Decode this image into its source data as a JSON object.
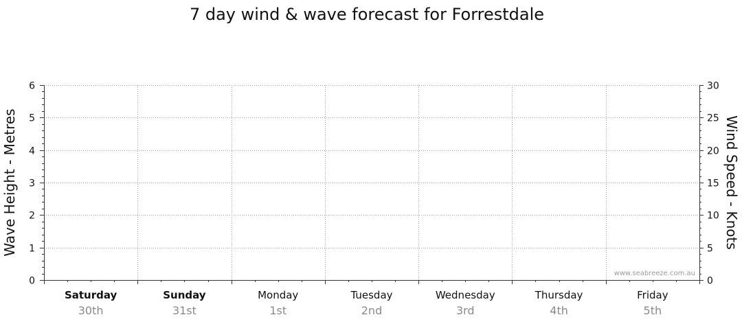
{
  "chart_data": {
    "type": "line",
    "title": "7 day wind & wave forecast for Forrestdale",
    "y_left": {
      "label": "Wave Height - Metres",
      "range": [
        0,
        6
      ],
      "ticks": [
        0,
        1,
        2,
        3,
        4,
        5,
        6
      ]
    },
    "y_right": {
      "label": "Wind Speed - Knots",
      "range": [
        0,
        30
      ],
      "ticks": [
        0,
        5,
        10,
        15,
        20,
        25,
        30
      ]
    },
    "days": [
      {
        "day": "Saturday",
        "date": "30th",
        "bold": true
      },
      {
        "day": "Sunday",
        "date": "31st",
        "bold": true
      },
      {
        "day": "Monday",
        "date": "1st",
        "bold": false
      },
      {
        "day": "Tuesday",
        "date": "2nd",
        "bold": false
      },
      {
        "day": "Wednesday",
        "date": "3rd",
        "bold": false
      },
      {
        "day": "Thursday",
        "date": "4th",
        "bold": false
      },
      {
        "day": "Friday",
        "date": "5th",
        "bold": false
      }
    ],
    "grid": true,
    "series": [],
    "watermark": "www.seabreeze.com.au"
  }
}
